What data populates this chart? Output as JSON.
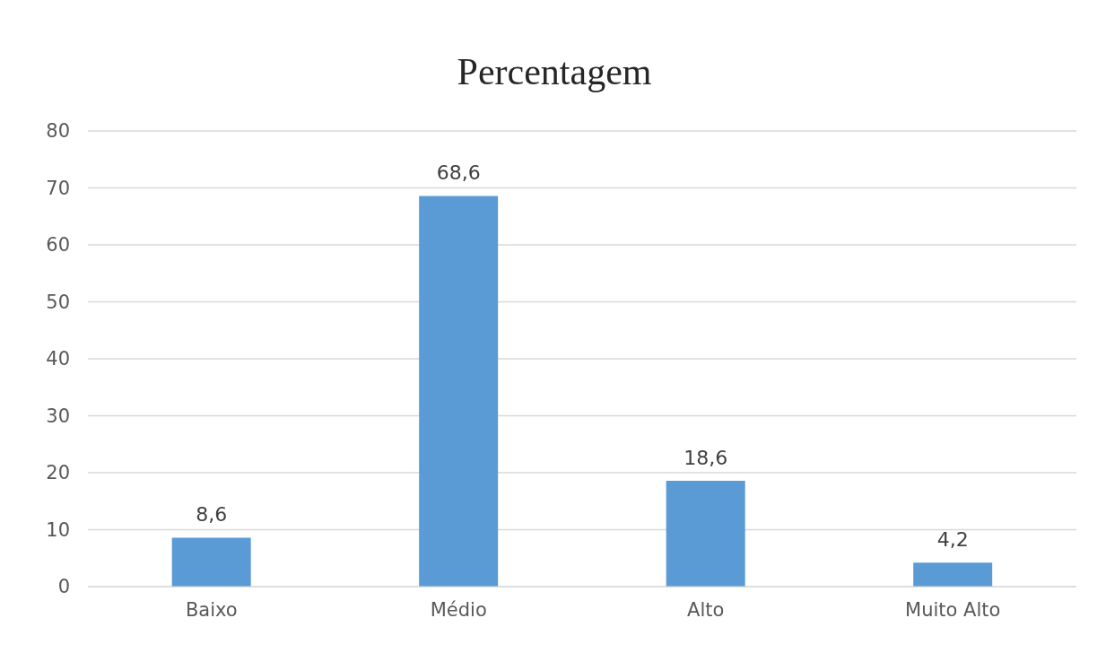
{
  "chart_data": {
    "type": "bar",
    "title": "Percentagem",
    "categories": [
      "Baixo",
      "Médio",
      "Alto",
      "Muito Alto"
    ],
    "values": [
      8.6,
      68.6,
      18.6,
      4.2
    ],
    "value_labels": [
      "8,6",
      "68,6",
      "18,6",
      "4,2"
    ],
    "color": "#5b9bd5",
    "ylim": [
      0,
      80
    ],
    "yticks": [
      0,
      10,
      20,
      30,
      40,
      50,
      60,
      70,
      80
    ],
    "grid": "y"
  }
}
